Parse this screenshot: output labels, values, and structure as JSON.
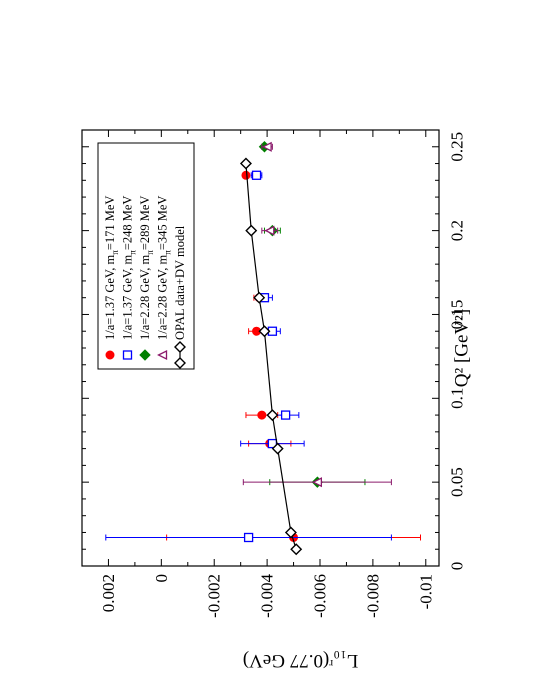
{
  "chart_data": {
    "type": "scatter",
    "rotation_deg": 90,
    "xlabel": "Q² [GeV²]",
    "ylabel": "L₁₀ʳ(0.77 GeV)",
    "xlim": [
      0,
      0.26
    ],
    "ylim": [
      -0.0105,
      0.003
    ],
    "x_ticks": [
      0,
      0.05,
      0.1,
      0.15,
      0.2,
      0.25
    ],
    "x_tick_labels": [
      "0",
      "0.05",
      "0.1",
      "0.15",
      "0.2",
      "0.25"
    ],
    "y_ticks": [
      0.002,
      0,
      -0.002,
      -0.004,
      -0.006,
      -0.008,
      -0.01
    ],
    "y_tick_labels": [
      "0.002",
      "0",
      "-0.002",
      "-0.004",
      "-0.006",
      "-0.008",
      "-0.01"
    ],
    "legend_position": "top-left of rotated plot",
    "series": [
      {
        "name": "1/a=1.37 GeV, m_π=171 MeV",
        "label_main": "1/a=1.37 GeV, m",
        "label_sub": "π",
        "label_tail": "=171 MeV",
        "marker": "filled-circle",
        "color": "#ff0000",
        "points": [
          {
            "x": 0.017,
            "y": -0.005,
            "err": 0.0048
          },
          {
            "x": 0.073,
            "y": -0.0041,
            "err": 0.0008
          },
          {
            "x": 0.09,
            "y": -0.0038,
            "err": 0.0006
          },
          {
            "x": 0.14,
            "y": -0.0036,
            "err": 0.0003
          },
          {
            "x": 0.16,
            "y": -0.0037,
            "err": 0.0002
          },
          {
            "x": 0.233,
            "y": -0.0032,
            "err": 0.0001
          }
        ]
      },
      {
        "name": "1/a=1.37 GeV, m_π=248 MeV",
        "label_main": "1/a=1.37 GeV, m",
        "label_sub": "π",
        "label_tail": "=248 MeV",
        "marker": "open-square",
        "color": "#0000ff",
        "points": [
          {
            "x": 0.017,
            "y": -0.0033,
            "err": 0.0054
          },
          {
            "x": 0.073,
            "y": -0.0042,
            "err": 0.0012
          },
          {
            "x": 0.09,
            "y": -0.0047,
            "err": 0.0005
          },
          {
            "x": 0.14,
            "y": -0.0042,
            "err": 0.0003
          },
          {
            "x": 0.16,
            "y": -0.0039,
            "err": 0.0003
          },
          {
            "x": 0.233,
            "y": -0.0036,
            "err": 0.0002
          }
        ]
      },
      {
        "name": "1/a=2.28 GeV, m_π=289 MeV",
        "label_main": "1/a=2.28 GeV, m",
        "label_sub": "π",
        "label_tail": "=289 MeV",
        "marker": "filled-diamond",
        "color": "#008000",
        "points": [
          {
            "x": 0.05,
            "y": -0.0059,
            "err": 0.0018
          },
          {
            "x": 0.2,
            "y": -0.0042,
            "err": 0.0003
          },
          {
            "x": 0.25,
            "y": -0.0039,
            "err": 0.0001
          }
        ]
      },
      {
        "name": "1/a=2.28 GeV, m_π=345 MeV",
        "label_main": "1/a=2.28 GeV, m",
        "label_sub": "π",
        "label_tail": "=345 MeV",
        "marker": "open-triangle-left",
        "color": "#8b1a6b",
        "points": [
          {
            "x": 0.05,
            "y": -0.0059,
            "err": 0.0028
          },
          {
            "x": 0.2,
            "y": -0.0041,
            "err": 0.0003
          },
          {
            "x": 0.25,
            "y": -0.004,
            "err": 0.0002
          }
        ]
      },
      {
        "name": "OPAL data+DV model",
        "label_main": "OPAL data+DV model",
        "label_sub": "",
        "label_tail": "",
        "marker": "open-diamond-line",
        "color": "#000000",
        "points": [
          {
            "x": 0.01,
            "y": -0.0051
          },
          {
            "x": 0.02,
            "y": -0.0049
          },
          {
            "x": 0.07,
            "y": -0.0044
          },
          {
            "x": 0.09,
            "y": -0.0042
          },
          {
            "x": 0.14,
            "y": -0.0039
          },
          {
            "x": 0.16,
            "y": -0.0037
          },
          {
            "x": 0.2,
            "y": -0.0034
          },
          {
            "x": 0.24,
            "y": -0.0032
          }
        ]
      }
    ]
  }
}
